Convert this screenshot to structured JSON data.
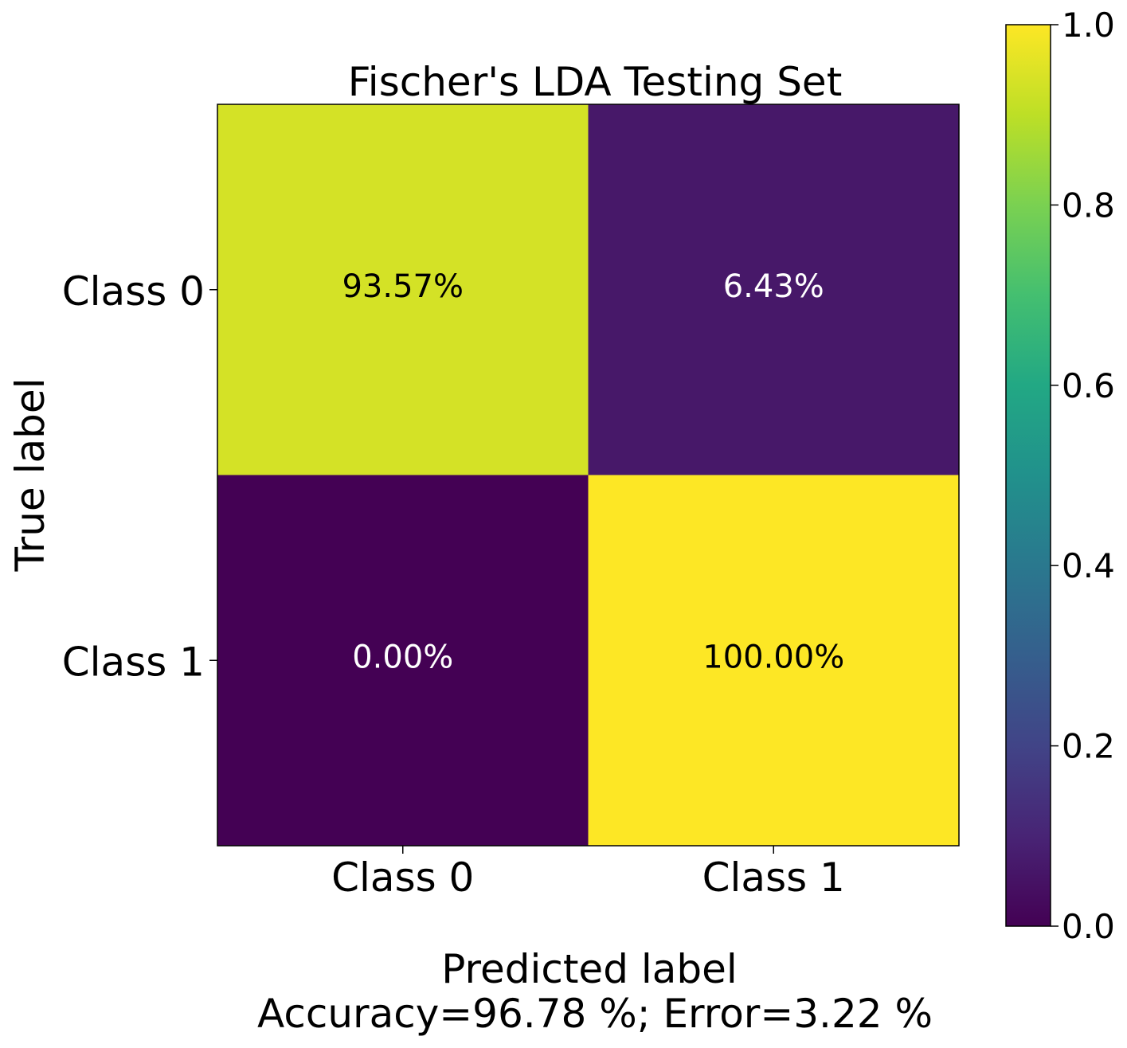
{
  "chart_data": {
    "type": "heatmap",
    "title": "Fischer's LDA Testing Set",
    "xlabel": "Predicted label",
    "xlabel_sub": "Accuracy=96.78 %; Error=3.22 %",
    "ylabel": "True label",
    "x_categories": [
      "Class 0",
      "Class 1"
    ],
    "y_categories": [
      "Class 0",
      "Class 1"
    ],
    "values": [
      [
        0.9357,
        0.0643
      ],
      [
        0.0,
        1.0
      ]
    ],
    "cell_labels": [
      [
        "93.57%",
        "6.43%"
      ],
      [
        "0.00%",
        "100.00%"
      ]
    ],
    "colormap": "viridis",
    "colorbar": {
      "range": [
        0.0,
        1.0
      ],
      "ticks": [
        0.0,
        0.2,
        0.4,
        0.6,
        0.8,
        1.0
      ],
      "tick_labels": [
        "0.0",
        "0.2",
        "0.4",
        "0.6",
        "0.8",
        "1.0"
      ]
    },
    "grid": false,
    "legend": "none"
  }
}
